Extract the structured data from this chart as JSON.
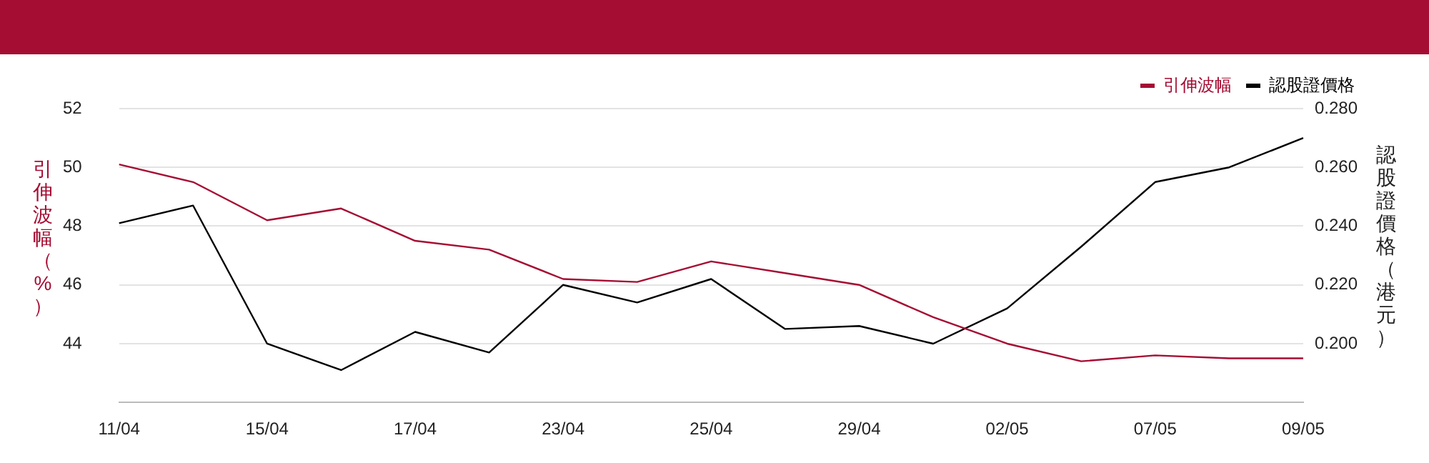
{
  "chart_data": {
    "type": "line",
    "categories": [
      "11/04",
      null,
      "15/04",
      null,
      "17/04",
      null,
      "23/04",
      null,
      "25/04",
      null,
      "29/04",
      null,
      "02/05",
      null,
      "07/05",
      null,
      "09/05"
    ],
    "series": [
      {
        "name": "引伸波幅",
        "color": "#a50d33",
        "values": [
          50.1,
          49.5,
          48.2,
          48.6,
          47.5,
          47.2,
          46.2,
          46.1,
          46.8,
          46.4,
          46.0,
          44.9,
          44.0,
          43.4,
          43.6,
          43.5,
          43.5
        ]
      },
      {
        "name": "認股證價格",
        "color": "#000000",
        "axis": "y2",
        "values": [
          0.241,
          0.247,
          0.2,
          0.191,
          0.204,
          0.197,
          0.22,
          0.214,
          0.222,
          0.205,
          0.206,
          0.2,
          0.212,
          0.233,
          0.255,
          0.26,
          0.27
        ]
      }
    ],
    "ylabel": "引伸波幅（%）",
    "y2label": "認股證價格（港元）",
    "ylim": [
      42,
      52
    ],
    "yticks": [
      44,
      46,
      48,
      50,
      52
    ],
    "y2lim": [
      0.18,
      0.28
    ],
    "y2ticks": [
      {
        "value": 0.2,
        "label": "0.200"
      },
      {
        "value": 0.22,
        "label": "0.220"
      },
      {
        "value": 0.24,
        "label": "0.240"
      },
      {
        "value": 0.26,
        "label": "0.260"
      },
      {
        "value": 0.28,
        "label": "0.280"
      }
    ],
    "grid": "y",
    "legend": "top right",
    "marker": "none",
    "line_style": "solid"
  }
}
